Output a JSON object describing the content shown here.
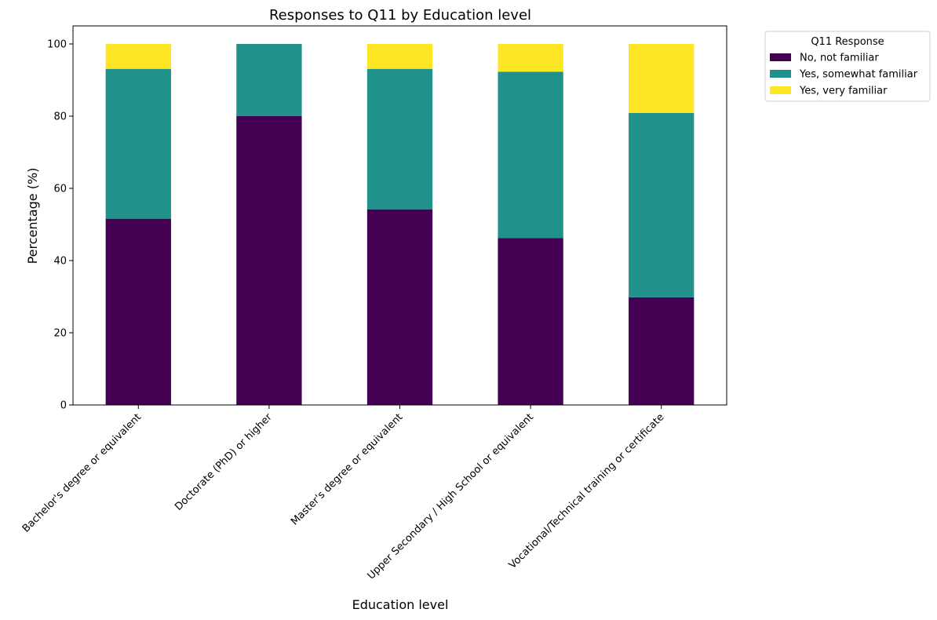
{
  "chart_data": {
    "type": "bar",
    "stacked": true,
    "title": "Responses to Q11 by Education level",
    "xlabel": "Education level",
    "ylabel": "Percentage (%)",
    "ylim": [
      0,
      105
    ],
    "yticks": [
      0,
      20,
      40,
      60,
      80,
      100
    ],
    "grid": false,
    "legend_title": "Q11 Response",
    "legend_position": "outside-right-top",
    "categories": [
      "Bachelor's degree or equivalent",
      "Doctorate (PhD) or higher",
      "Master's degree or equivalent",
      "Upper Secondary / High School or equivalent",
      "Vocational/Technical training or certificate"
    ],
    "series": [
      {
        "name": "No, not familiar",
        "color": "#440154",
        "values": [
          51.6,
          80.0,
          54.2,
          46.2,
          29.8
        ]
      },
      {
        "name": "Yes, somewhat familiar",
        "color": "#21918c",
        "values": [
          41.5,
          20.0,
          38.9,
          46.1,
          51.1
        ]
      },
      {
        "name": "Yes, very familiar",
        "color": "#fde725",
        "values": [
          6.9,
          0.0,
          6.9,
          7.7,
          19.1
        ]
      }
    ]
  }
}
